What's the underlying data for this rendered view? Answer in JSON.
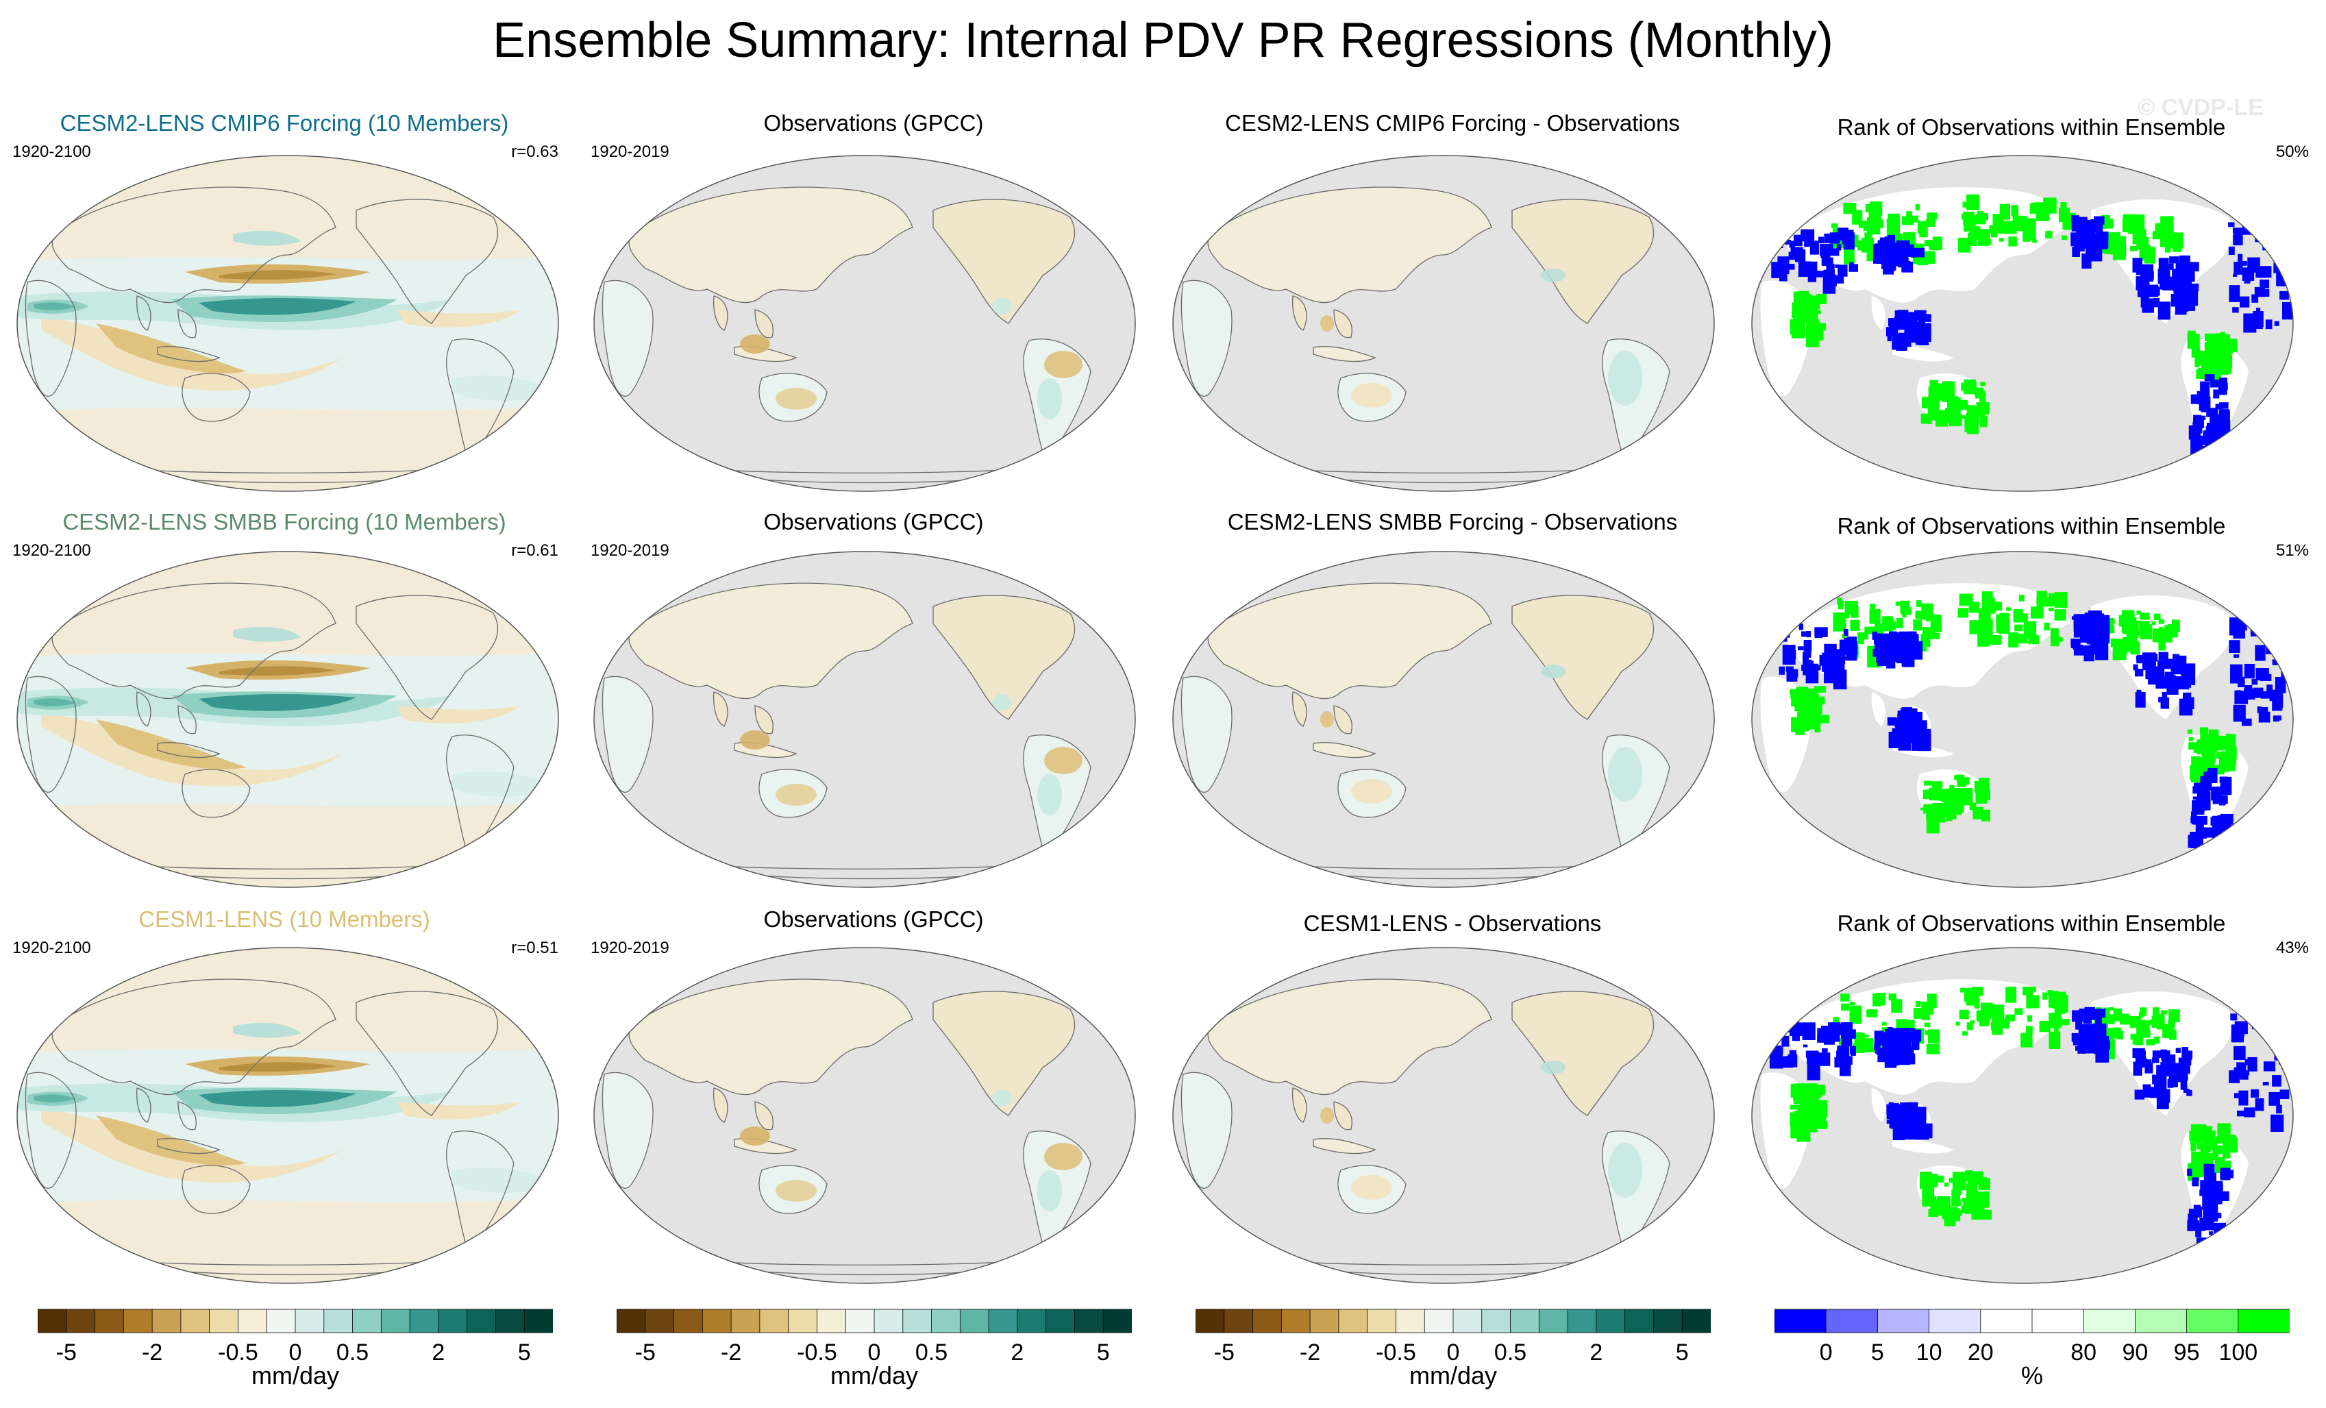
{
  "title": "Ensemble Summary: Internal PDV PR Regressions (Monthly)",
  "watermark": "© CVDP-LE",
  "rows": [
    {
      "model": {
        "title": "CESM2-LENS CMIP6 Forcing (10 Members)",
        "title_color": "#0f6d8c",
        "years": "1920-2100",
        "r": "r=0.63"
      },
      "obs": {
        "title": "Observations (GPCC)",
        "years": "1920-2019"
      },
      "diff": {
        "title": "CESM2-LENS CMIP6 Forcing - Observations"
      },
      "rank": {
        "title": "Rank of Observations within Ensemble",
        "pct": "50%"
      }
    },
    {
      "model": {
        "title": "CESM2-LENS SMBB Forcing (10 Members)",
        "title_color": "#5a8a6a",
        "years": "1920-2100",
        "r": "r=0.61"
      },
      "obs": {
        "title": "Observations (GPCC)",
        "years": "1920-2019"
      },
      "diff": {
        "title": "CESM2-LENS SMBB Forcing - Observations"
      },
      "rank": {
        "title": "Rank of Observations within Ensemble",
        "pct": "51%"
      }
    },
    {
      "model": {
        "title": "CESM1-LENS (10 Members)",
        "title_color": "#d8c070",
        "years": "1920-2100",
        "r": "r=0.51"
      },
      "obs": {
        "title": "Observations (GPCC)",
        "years": "1920-2019"
      },
      "diff": {
        "title": "CESM1-LENS - Observations"
      },
      "rank": {
        "title": "Rank of Observations within Ensemble",
        "pct": "43%"
      }
    }
  ],
  "colorbars": [
    {
      "units": "mm/day",
      "colors": [
        "#543005",
        "#6e4410",
        "#8c5a17",
        "#b07d2b",
        "#c9a253",
        "#dfc27d",
        "#eedbaa",
        "#f6efd8",
        "#f2f6f2",
        "#d8eeea",
        "#b8e0d8",
        "#8fd0c3",
        "#5fb5a6",
        "#35978f",
        "#1c7c72",
        "#0e6359",
        "#064a42",
        "#003c30"
      ],
      "tick_labels": [
        "-5",
        "-2",
        "-0.5",
        "0",
        "0.5",
        "2",
        "5"
      ]
    },
    {
      "units": "mm/day",
      "colors": [
        "#543005",
        "#6e4410",
        "#8c5a17",
        "#b07d2b",
        "#c9a253",
        "#dfc27d",
        "#eedbaa",
        "#f6efd8",
        "#f2f6f2",
        "#d8eeea",
        "#b8e0d8",
        "#8fd0c3",
        "#5fb5a6",
        "#35978f",
        "#1c7c72",
        "#0e6359",
        "#064a42",
        "#003c30"
      ],
      "tick_labels": [
        "-5",
        "-2",
        "-0.5",
        "0",
        "0.5",
        "2",
        "5"
      ]
    },
    {
      "units": "mm/day",
      "colors": [
        "#543005",
        "#6e4410",
        "#8c5a17",
        "#b07d2b",
        "#c9a253",
        "#dfc27d",
        "#eedbaa",
        "#f6efd8",
        "#f2f6f2",
        "#d8eeea",
        "#b8e0d8",
        "#8fd0c3",
        "#5fb5a6",
        "#35978f",
        "#1c7c72",
        "#0e6359",
        "#064a42",
        "#003c30"
      ],
      "tick_labels": [
        "-5",
        "-2",
        "-0.5",
        "0",
        "0.5",
        "2",
        "5"
      ]
    },
    {
      "units": "%",
      "colors": [
        "#0000ff",
        "#6464ff",
        "#b4b4ff",
        "#e0e0ff",
        "#ffffff",
        "#ffffff",
        "#e0ffe0",
        "#b4ffb4",
        "#64ff64",
        "#00ff00"
      ],
      "tick_labels": [
        "0",
        "5",
        "10",
        "20",
        "80",
        "90",
        "95",
        "100"
      ]
    }
  ]
}
